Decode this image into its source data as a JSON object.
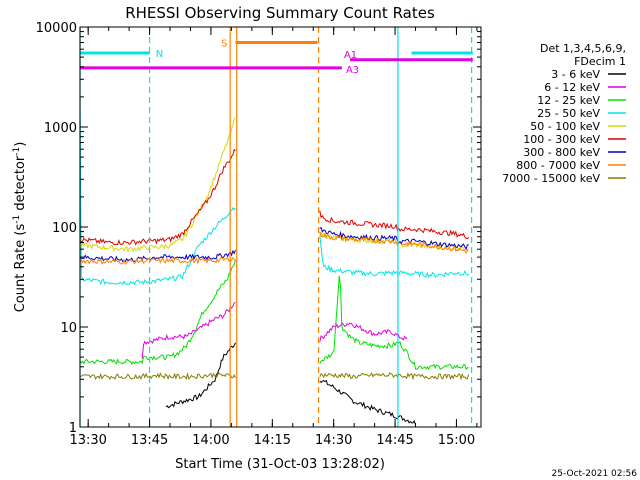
{
  "chart_data": {
    "type": "line",
    "title": "RHESSI Observing Summary Count Rates",
    "xlabel": "Start Time (31-Oct-03 13:28:02)",
    "ylabel": "Count Rate (s⁻¹ detector⁻¹)",
    "ylabel_parts": {
      "main": "Count Rate (s",
      "sup1": "-1",
      "mid": " detector",
      "sup2": "-1",
      "end": ")"
    },
    "footer": "25-Oct-2021 02:56",
    "x_range_min": [
      808,
      906
    ],
    "y_scale": "log",
    "ylim": [
      1,
      10000
    ],
    "x_ticks": [
      {
        "value": 810,
        "label": "13:30"
      },
      {
        "value": 825,
        "label": "13:45"
      },
      {
        "value": 840,
        "label": "14:00"
      },
      {
        "value": 855,
        "label": "14:15"
      },
      {
        "value": 870,
        "label": "14:30"
      },
      {
        "value": 885,
        "label": "14:45"
      },
      {
        "value": 900,
        "label": "15:00"
      }
    ],
    "y_ticks": [
      {
        "value": 1,
        "label": "1"
      },
      {
        "value": 10,
        "label": "10"
      },
      {
        "value": 100,
        "label": "100"
      },
      {
        "value": 1000,
        "label": "1000"
      },
      {
        "value": 10000,
        "label": "10000"
      }
    ],
    "legend": {
      "placement": "right",
      "header": [
        "Det 1,3,4,5,6,9,",
        "FDecim 1"
      ],
      "entries": [
        {
          "label": "3 - 6 keV",
          "color": "#000000"
        },
        {
          "label": "6 - 12 keV",
          "color": "#e000e0"
        },
        {
          "label": "12 - 25 keV",
          "color": "#00e000"
        },
        {
          "label": "25 - 50 keV",
          "color": "#00e5e5"
        },
        {
          "label": "50 - 100 keV",
          "color": "#d8d800"
        },
        {
          "label": "100 - 300 keV",
          "color": "#e00000"
        },
        {
          "label": "300 - 800 keV",
          "color": "#0000c8"
        },
        {
          "label": "800 - 7000 keV",
          "color": "#ff7f00"
        },
        {
          "label": "7000 - 15000 keV",
          "color": "#808000"
        }
      ]
    },
    "flag_bars": [
      {
        "label": "N",
        "color": "#00e5e5",
        "y": 5500,
        "segments": [
          [
            808,
            825
          ],
          [
            889,
            904
          ]
        ]
      },
      {
        "label": "S",
        "color": "#ff7f00",
        "y": 7000,
        "segments": [
          [
            846,
            866
          ]
        ]
      },
      {
        "label": "A1",
        "color": "#e000e0",
        "y": 4700,
        "segments": [
          [
            874,
            904
          ]
        ]
      },
      {
        "label": "A3",
        "color": "#e000e0",
        "y": 3900,
        "segments": [
          [
            808,
            872
          ]
        ]
      }
    ],
    "markers": [
      {
        "time": 808,
        "color": "#00e5e5",
        "style": "solid"
      },
      {
        "time": 825,
        "color": "#00e5e5",
        "style": "dashed"
      },
      {
        "time": 844.7,
        "color": "#ff7f00",
        "style": "solid"
      },
      {
        "time": 846.3,
        "color": "#ff7f00",
        "style": "solid"
      },
      {
        "time": 866.3,
        "color": "#ff7f00",
        "style": "dashed"
      },
      {
        "time": 885.7,
        "color": "#00e5e5",
        "style": "solid"
      },
      {
        "time": 903.7,
        "color": "#00e5e5",
        "style": "dashed"
      }
    ],
    "gap": [
      846,
      866.6
    ],
    "series": [
      {
        "name": "3 - 6 keV",
        "color": "#000000",
        "x": [
          829,
          833,
          837,
          841,
          843,
          846,
          866.6,
          870,
          875,
          880,
          885,
          890
        ],
        "y": [
          1.6,
          1.8,
          2.0,
          3.0,
          5.0,
          7.0,
          3.0,
          2.5,
          1.8,
          1.5,
          1.3,
          1.1
        ]
      },
      {
        "name": "6 - 12 keV",
        "color": "#e000e0",
        "x": [
          823.2,
          823.5,
          827,
          830,
          834,
          838,
          841,
          843,
          844.5,
          846,
          866.6,
          870,
          874,
          876,
          880,
          884,
          886,
          888
        ],
        "y": [
          5,
          7,
          7.5,
          8,
          8,
          10,
          12,
          13,
          15,
          18,
          7.5,
          10,
          11,
          10,
          8.5,
          9,
          8,
          7.5
        ]
      },
      {
        "name": "12 - 25 keV",
        "color": "#00e000",
        "x": [
          808,
          815,
          820,
          823.2,
          823.5,
          827,
          830,
          832,
          834,
          836,
          838,
          840,
          842,
          844,
          845,
          846,
          866.6,
          870,
          871.5,
          872,
          874,
          876,
          880,
          884,
          886,
          888,
          890,
          895,
          900,
          903
        ],
        "y": [
          4.5,
          4.5,
          4.5,
          4.5,
          5,
          5,
          5,
          5.5,
          6.5,
          9,
          14,
          18,
          24,
          30,
          38,
          45,
          4.5,
          5.5,
          40,
          10,
          8,
          7,
          6.5,
          6.5,
          7,
          5.5,
          4,
          4,
          4,
          4
        ]
      },
      {
        "name": "25 - 50 keV",
        "color": "#00e5e5",
        "x": [
          808,
          808.1,
          815,
          820,
          823.5,
          827,
          830,
          833,
          835,
          837,
          839,
          841,
          843,
          845,
          846,
          866.6,
          867.5,
          870,
          875,
          880,
          885,
          890,
          895,
          900,
          903
        ],
        "y": [
          2000,
          30,
          28,
          28,
          28,
          29,
          30,
          32,
          45,
          65,
          80,
          100,
          120,
          150,
          160,
          80,
          40,
          37,
          35,
          34,
          35,
          34,
          33,
          35,
          34
        ]
      },
      {
        "name": "50 - 100 keV",
        "color": "#d8d800",
        "x": [
          808,
          815,
          820,
          823.5,
          827,
          830,
          833,
          835,
          837,
          839,
          841,
          843,
          845,
          846,
          866.6,
          870,
          875,
          880,
          885,
          886,
          890,
          895,
          900,
          903
        ],
        "y": [
          66,
          62,
          60,
          62,
          63,
          65,
          75,
          100,
          140,
          200,
          320,
          550,
          900,
          1300,
          85,
          78,
          75,
          72,
          72,
          66,
          66,
          63,
          62,
          62
        ]
      },
      {
        "name": "100 - 300 keV",
        "color": "#e00000",
        "x": [
          808,
          815,
          820,
          823.5,
          827,
          830,
          833,
          835,
          837,
          839,
          841,
          843,
          845,
          846,
          866.6,
          867,
          870,
          875,
          880,
          885,
          886,
          890,
          895,
          900,
          903
        ],
        "y": [
          75,
          70,
          70,
          72,
          73,
          75,
          85,
          110,
          140,
          180,
          250,
          380,
          500,
          600,
          150,
          125,
          115,
          110,
          105,
          102,
          95,
          95,
          90,
          85,
          80
        ]
      },
      {
        "name": "300 - 800 keV",
        "color": "#0000c8",
        "x": [
          808,
          815,
          820,
          823.5,
          827,
          830,
          833,
          837,
          841,
          843,
          845,
          846,
          866.6,
          870,
          875,
          880,
          885,
          886,
          890,
          895,
          900,
          903
        ],
        "y": [
          50,
          48,
          47,
          48,
          50,
          50,
          50,
          50,
          50,
          52,
          55,
          58,
          95,
          85,
          80,
          78,
          77,
          72,
          72,
          68,
          65,
          63
        ]
      },
      {
        "name": "800 - 7000 keV",
        "color": "#ff7f00",
        "x": [
          808,
          815,
          820,
          823.5,
          827,
          830,
          835,
          840,
          843,
          845,
          846,
          866.6,
          870,
          875,
          880,
          885,
          886,
          890,
          895,
          900,
          903
        ],
        "y": [
          46,
          45,
          45,
          46,
          46,
          46,
          46,
          46,
          47,
          48,
          48,
          85,
          78,
          75,
          73,
          72,
          68,
          68,
          64,
          60,
          57
        ]
      },
      {
        "name": "7000 - 15000 keV",
        "color": "#808000",
        "x": [
          808,
          815,
          820,
          823.5,
          827,
          830,
          835,
          840,
          843,
          845,
          846,
          866.6,
          870,
          875,
          880,
          885,
          890,
          895,
          900,
          903
        ],
        "y": [
          3.2,
          3.2,
          3.2,
          3.2,
          3.3,
          3.2,
          3.2,
          3.3,
          3.3,
          3.2,
          3.3,
          3.3,
          3.3,
          3.2,
          3.3,
          3.3,
          3.2,
          3.2,
          3.2,
          3.2
        ]
      }
    ]
  }
}
